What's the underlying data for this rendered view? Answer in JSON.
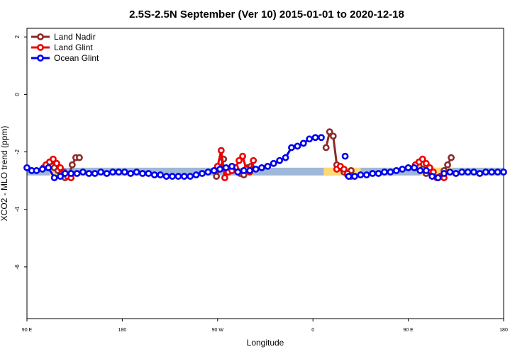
{
  "chart_data": {
    "type": "line",
    "title": "2.5S-2.5N September (Ver 10)   2015-01-01 to 2020-12-18",
    "xlabel": "Longitude",
    "ylabel": "XCO2 - MLO trend (ppm)",
    "xlim": [
      0,
      400
    ],
    "ylim": [
      -7.8,
      2.3
    ],
    "x_ticks": [
      {
        "pos": 0,
        "label": "90 E"
      },
      {
        "pos": 80,
        "label": "180"
      },
      {
        "pos": 160,
        "label": "90 W"
      },
      {
        "pos": 240,
        "label": "0"
      },
      {
        "pos": 320,
        "label": "90 E"
      },
      {
        "pos": 400,
        "label": "180"
      }
    ],
    "y_ticks": [
      2,
      0,
      -2,
      -4,
      -6
    ],
    "legend_position": "top-left",
    "background_bands": [
      {
        "color": "#a0b8d8",
        "x0": 0,
        "x1": 400,
        "y0": -2.82,
        "y1": -2.55
      },
      {
        "color": "#ffd978",
        "x0": 19,
        "x1": 26,
        "y0": -2.82,
        "y1": -2.55
      },
      {
        "color": "#ffd978",
        "x0": 185,
        "x1": 190,
        "y0": -2.82,
        "y1": -2.55
      },
      {
        "color": "#ffd978",
        "x0": 249,
        "x1": 280,
        "y0": -2.82,
        "y1": -2.55
      },
      {
        "color": "#ffd978",
        "x0": 330,
        "x1": 357,
        "y0": -2.82,
        "y1": -2.55
      }
    ],
    "series": [
      {
        "name": "Land Nadir",
        "color": "#8b2a2a",
        "segments": [
          {
            "x": [
              14,
              17,
              20,
              23,
              26,
              29,
              32,
              35,
              38,
              41,
              44
            ],
            "y": [
              -2.55,
              -2.5,
              -2.45,
              -2.55,
              -2.65,
              -2.75,
              -2.9,
              -2.85,
              -2.45,
              -2.2,
              -2.2
            ]
          },
          {
            "x": [
              159,
              162,
              165
            ],
            "y": [
              -2.85,
              -2.55,
              -2.25
            ]
          },
          {
            "x": [
              176,
              179,
              182,
              185,
              188
            ],
            "y": [
              -2.65,
              -2.75,
              -2.8,
              -2.55,
              -2.5
            ]
          },
          {
            "x": [
              251,
              254,
              257,
              260,
              263,
              266,
              269,
              272
            ],
            "y": [
              -1.85,
              -1.3,
              -1.45,
              -2.45,
              -2.55,
              -2.7,
              -2.8,
              -2.65
            ]
          },
          {
            "x": [
              326,
              329,
              332,
              335
            ],
            "y": [
              -2.55,
              -2.5,
              -2.6,
              -2.75
            ]
          },
          {
            "x": [
              350,
              353,
              356
            ],
            "y": [
              -2.65,
              -2.45,
              -2.2
            ]
          }
        ]
      },
      {
        "name": "Land Glint",
        "color": "#ee0000",
        "segments": [
          {
            "x": [
              16,
              19,
              22,
              25,
              28,
              31,
              34,
              37
            ],
            "y": [
              -2.45,
              -2.35,
              -2.25,
              -2.4,
              -2.55,
              -2.7,
              -2.85,
              -2.9
            ]
          },
          {
            "x": [
              160,
              163,
              166,
              169,
              172,
              175,
              178,
              181,
              184,
              187,
              190
            ],
            "y": [
              -2.5,
              -1.95,
              -2.9,
              -2.7,
              -2.65,
              -2.55,
              -2.3,
              -2.15,
              -2.6,
              -2.7,
              -2.3
            ]
          },
          {
            "x": [
              260,
              263,
              266,
              269,
              272
            ],
            "y": [
              -2.6,
              -2.5,
              -2.6,
              -2.75,
              -2.85
            ]
          },
          {
            "x": [
              326,
              329,
              332,
              335,
              338,
              341,
              344,
              347,
              350
            ],
            "y": [
              -2.45,
              -2.35,
              -2.25,
              -2.4,
              -2.55,
              -2.7,
              -2.9,
              -2.85,
              -2.9
            ]
          }
        ]
      },
      {
        "name": "Ocean Glint",
        "color": "#0000ee",
        "segments": [
          {
            "x": [
              0,
              4,
              8,
              13,
              18,
              23,
              28,
              32,
              37,
              42,
              47,
              52,
              57,
              62,
              67,
              72,
              77,
              82,
              87,
              92,
              97,
              102,
              107,
              112,
              117,
              122,
              127,
              132,
              137,
              142,
              147,
              152,
              157,
              162,
              167,
              172,
              177,
              182,
              187,
              192,
              197,
              202,
              207,
              212,
              217,
              222,
              227,
              232,
              237,
              242,
              247
            ],
            "y": [
              -2.55,
              -2.65,
              -2.65,
              -2.6,
              -2.55,
              -2.9,
              -2.85,
              -2.75,
              -2.75,
              -2.75,
              -2.7,
              -2.75,
              -2.75,
              -2.7,
              -2.75,
              -2.7,
              -2.7,
              -2.7,
              -2.75,
              -2.7,
              -2.75,
              -2.75,
              -2.8,
              -2.8,
              -2.85,
              -2.85,
              -2.85,
              -2.85,
              -2.85,
              -2.8,
              -2.75,
              -2.7,
              -2.65,
              -2.6,
              -2.55,
              -2.5,
              -2.7,
              -2.65,
              -2.65,
              -2.6,
              -2.55,
              -2.5,
              -2.4,
              -2.3,
              -2.2,
              -1.85,
              -1.8,
              -1.7,
              -1.55,
              -1.5,
              -1.5
            ]
          },
          {
            "x": [
              270,
              275,
              280,
              285,
              290,
              295,
              300,
              305,
              310,
              315,
              320,
              325,
              330,
              335,
              340,
              345,
              350,
              355,
              360,
              365,
              370,
              375,
              380,
              385,
              390,
              395,
              400
            ],
            "y": [
              -2.85,
              -2.85,
              -2.8,
              -2.8,
              -2.75,
              -2.75,
              -2.7,
              -2.7,
              -2.65,
              -2.6,
              -2.55,
              -2.55,
              -2.65,
              -2.65,
              -2.85,
              -2.9,
              -2.75,
              -2.7,
              -2.75,
              -2.7,
              -2.7,
              -2.7,
              -2.75,
              -2.7,
              -2.7,
              -2.7,
              -2.7
            ]
          }
        ],
        "points": [
          {
            "x": 267,
            "y": -2.15
          }
        ]
      }
    ]
  }
}
